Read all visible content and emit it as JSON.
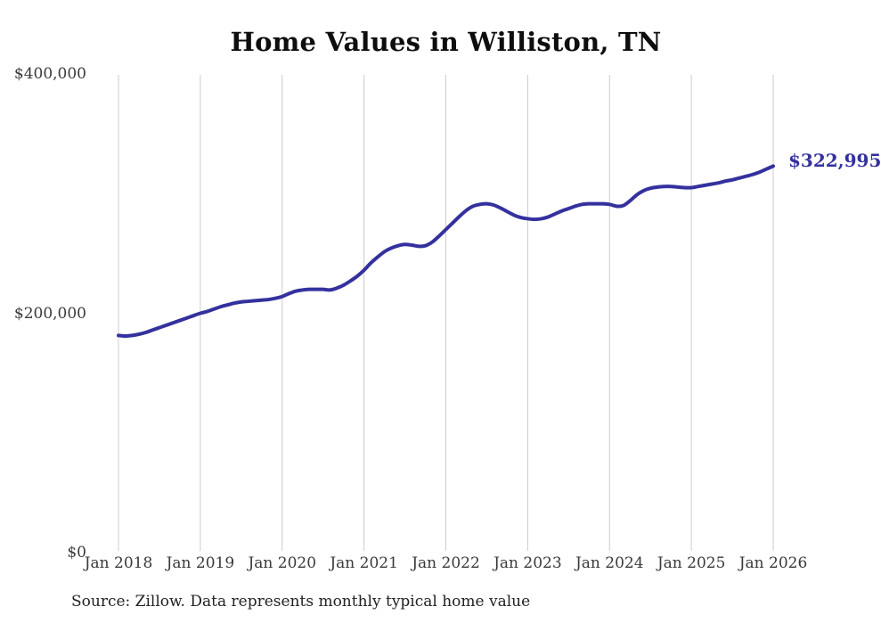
{
  "title": "Home Values in Williston, TN",
  "source_note": "Source: Zillow. Data represents monthly typical home value",
  "end_label": "$322,995",
  "colors": {
    "line": "#34319e",
    "grid": "#cccccc",
    "tick_text": "#3a3a3a",
    "title_text": "#0e0e0e",
    "background": "#ffffff"
  },
  "chart_data": {
    "type": "line",
    "title": "Home Values in Williston, TN",
    "xlabel": "",
    "ylabel": "",
    "ylim": [
      0,
      400000
    ],
    "grid": "vertical-only",
    "legend": "none",
    "y_ticks": [
      {
        "value": 0,
        "label": "$0"
      },
      {
        "value": 200000,
        "label": "$200,000"
      },
      {
        "value": 400000,
        "label": "$400,000"
      }
    ],
    "x_tick_labels": [
      "Jan 2018",
      "Jan 2019",
      "Jan 2020",
      "Jan 2021",
      "Jan 2022",
      "Jan 2023",
      "Jan 2024",
      "Jan 2025",
      "Jan 2026"
    ],
    "annotation": {
      "text": "$322,995",
      "at_x": "2026-01",
      "at_value": 322995
    },
    "series": [
      {
        "name": "Monthly typical home value",
        "x": [
          "2018-01",
          "2018-02",
          "2018-03",
          "2018-04",
          "2018-05",
          "2018-06",
          "2018-07",
          "2018-08",
          "2018-09",
          "2018-10",
          "2018-11",
          "2018-12",
          "2019-01",
          "2019-02",
          "2019-03",
          "2019-04",
          "2019-05",
          "2019-06",
          "2019-07",
          "2019-08",
          "2019-09",
          "2019-10",
          "2019-11",
          "2019-12",
          "2020-01",
          "2020-02",
          "2020-03",
          "2020-04",
          "2020-05",
          "2020-06",
          "2020-07",
          "2020-08",
          "2020-09",
          "2020-10",
          "2020-11",
          "2020-12",
          "2021-01",
          "2021-02",
          "2021-03",
          "2021-04",
          "2021-05",
          "2021-06",
          "2021-07",
          "2021-08",
          "2021-09",
          "2021-10",
          "2021-11",
          "2021-12",
          "2022-01",
          "2022-02",
          "2022-03",
          "2022-04",
          "2022-05",
          "2022-06",
          "2022-07",
          "2022-08",
          "2022-09",
          "2022-10",
          "2022-11",
          "2022-12",
          "2023-01",
          "2023-02",
          "2023-03",
          "2023-04",
          "2023-05",
          "2023-06",
          "2023-07",
          "2023-08",
          "2023-09",
          "2023-10",
          "2023-11",
          "2023-12",
          "2024-01",
          "2024-02",
          "2024-03",
          "2024-04",
          "2024-05",
          "2024-06",
          "2024-07",
          "2024-08",
          "2024-09",
          "2024-10",
          "2024-11",
          "2024-12",
          "2025-01",
          "2025-02",
          "2025-03",
          "2025-04",
          "2025-05",
          "2025-06",
          "2025-07",
          "2025-08",
          "2025-09",
          "2025-10",
          "2025-11",
          "2025-12",
          "2026-01"
        ],
        "values": [
          181500,
          181000,
          181500,
          182500,
          184000,
          186000,
          188000,
          190000,
          192000,
          194000,
          196000,
          198000,
          200000,
          201500,
          203500,
          205500,
          207000,
          208500,
          209500,
          210000,
          210500,
          211000,
          211500,
          212500,
          214000,
          216500,
          218500,
          219500,
          220000,
          220000,
          220000,
          219500,
          221000,
          223500,
          227000,
          231000,
          236000,
          242000,
          247000,
          251500,
          254500,
          256500,
          257500,
          257000,
          256000,
          256500,
          259500,
          264500,
          270000,
          275500,
          281000,
          286000,
          289500,
          291000,
          291500,
          290500,
          288000,
          285000,
          282000,
          280000,
          279000,
          278500,
          279000,
          280500,
          283000,
          285500,
          287500,
          289500,
          291000,
          291500,
          291500,
          291500,
          291000,
          289500,
          290000,
          294000,
          299000,
          302500,
          304500,
          305500,
          306000,
          306000,
          305500,
          305000,
          305000,
          306000,
          307000,
          308000,
          309000,
          310500,
          311500,
          313000,
          314500,
          316000,
          318000,
          320500,
          322995
        ]
      }
    ],
    "final_value": 322995
  }
}
